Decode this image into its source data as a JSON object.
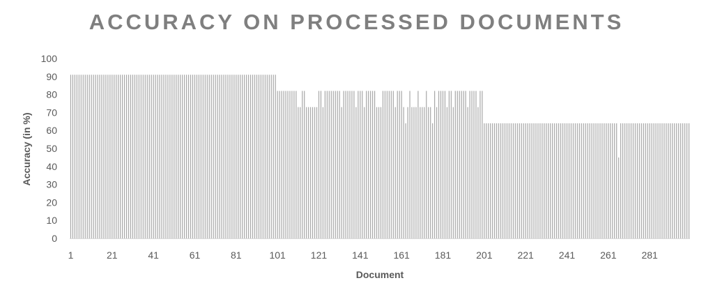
{
  "chart_data": {
    "type": "bar",
    "title": "ACCURACY ON PROCESSED DOCUMENTS",
    "xlabel": "Document",
    "ylabel": "Accuracy (in %)",
    "ylim": [
      0,
      100
    ],
    "y_ticks": [
      "0",
      "10",
      "20",
      "30",
      "40",
      "50",
      "60",
      "70",
      "80",
      "90",
      "100"
    ],
    "x_ticks": [
      "1",
      "21",
      "41",
      "61",
      "81",
      "101",
      "121",
      "141",
      "161",
      "181",
      "201",
      "221",
      "241",
      "261",
      "281"
    ],
    "n_documents": 300,
    "bar_color": "#a6a6a6",
    "grid": false,
    "legend": "none",
    "series": [
      {
        "values": [
          91,
          91,
          91,
          91,
          91,
          91,
          91,
          91,
          91,
          91,
          91,
          91,
          91,
          91,
          91,
          91,
          91,
          91,
          91,
          91,
          91,
          91,
          91,
          91,
          91,
          91,
          91,
          91,
          91,
          91,
          91,
          91,
          91,
          91,
          91,
          91,
          91,
          91,
          91,
          91,
          91,
          91,
          91,
          91,
          91,
          91,
          91,
          91,
          91,
          91,
          91,
          91,
          91,
          91,
          91,
          91,
          91,
          91,
          91,
          91,
          91,
          91,
          91,
          91,
          91,
          91,
          91,
          91,
          91,
          91,
          91,
          91,
          91,
          91,
          91,
          91,
          91,
          91,
          91,
          91,
          91,
          91,
          91,
          91,
          91,
          91,
          91,
          91,
          91,
          91,
          91,
          91,
          91,
          91,
          91,
          91,
          91,
          91,
          91,
          91,
          82,
          82,
          82,
          82,
          82,
          82,
          82,
          82,
          82,
          82,
          73,
          73,
          82,
          82,
          73,
          73,
          73,
          73,
          73,
          73,
          82,
          82,
          73,
          82,
          82,
          82,
          82,
          82,
          82,
          82,
          82,
          73,
          82,
          82,
          82,
          82,
          82,
          82,
          73,
          82,
          82,
          82,
          73,
          82,
          82,
          82,
          82,
          82,
          73,
          73,
          73,
          82,
          82,
          82,
          82,
          82,
          82,
          73,
          82,
          82,
          82,
          73,
          64,
          73,
          82,
          73,
          73,
          73,
          82,
          73,
          73,
          73,
          82,
          73,
          73,
          64,
          82,
          73,
          82,
          82,
          82,
          82,
          73,
          82,
          82,
          73,
          82,
          82,
          82,
          82,
          82,
          82,
          73,
          82,
          82,
          82,
          82,
          73,
          82,
          82,
          64,
          64,
          64,
          64,
          64,
          64,
          64,
          64,
          64,
          64,
          64,
          64,
          64,
          64,
          64,
          64,
          64,
          64,
          64,
          64,
          64,
          64,
          64,
          64,
          64,
          64,
          64,
          64,
          64,
          64,
          64,
          64,
          64,
          64,
          64,
          64,
          64,
          64,
          64,
          64,
          64,
          64,
          64,
          64,
          64,
          64,
          64,
          64,
          64,
          64,
          64,
          64,
          64,
          64,
          64,
          64,
          64,
          64,
          64,
          64,
          64,
          64,
          64,
          64,
          64,
          45,
          64,
          64,
          64,
          64,
          64,
          64,
          64,
          64,
          64,
          64,
          64,
          64,
          64,
          64,
          64,
          64,
          64,
          64,
          64,
          64,
          64,
          64,
          64,
          64,
          64,
          64,
          64,
          64,
          64,
          64,
          64,
          64,
          64,
          64
        ]
      }
    ]
  }
}
